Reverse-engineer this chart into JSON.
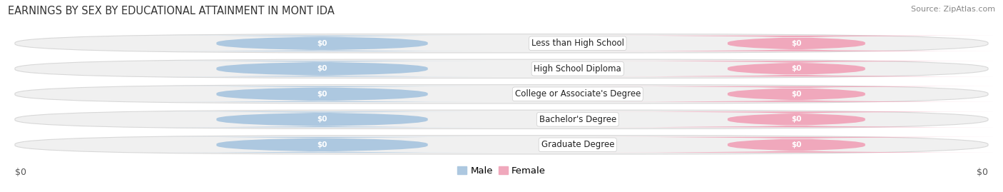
{
  "title": "EARNINGS BY SEX BY EDUCATIONAL ATTAINMENT IN MONT IDA",
  "source": "Source: ZipAtlas.com",
  "categories": [
    "Less than High School",
    "High School Diploma",
    "College or Associate's Degree",
    "Bachelor's Degree",
    "Graduate Degree"
  ],
  "male_values": [
    0,
    0,
    0,
    0,
    0
  ],
  "female_values": [
    0,
    0,
    0,
    0,
    0
  ],
  "male_color": "#adc8e0",
  "female_color": "#f0a8bc",
  "row_fill_color": "#f0f0f0",
  "row_stroke_color": "#d8d8d8",
  "xlabel_left": "$0",
  "xlabel_right": "$0",
  "title_fontsize": 10.5,
  "source_fontsize": 8,
  "label_fontsize": 9,
  "tick_fontsize": 9,
  "value_label": "$0",
  "background_color": "#ffffff",
  "legend_labels": [
    "Male",
    "Female"
  ]
}
